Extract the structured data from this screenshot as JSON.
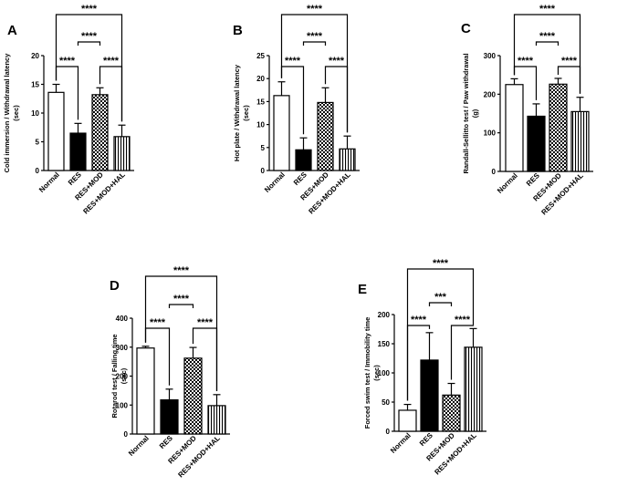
{
  "chart_data": [
    {
      "type": "bar",
      "panel": "A",
      "categories": [
        "Normal",
        "RES",
        "RES+MOD",
        "RES+MOD+HAL"
      ],
      "values": [
        13.6,
        6.5,
        13.2,
        5.9
      ],
      "errors": [
        1.4,
        1.7,
        1.2,
        2.0
      ],
      "ylabel": [
        "Cold immersion / Withdrawal latency",
        "(sec)"
      ],
      "ylim": [
        0,
        20
      ],
      "yticks": [
        0,
        5,
        10,
        15,
        20
      ],
      "patterns": [
        "white",
        "black",
        "checker",
        "vstripe"
      ],
      "significance": [
        {
          "from": 0,
          "to": 1,
          "level": 1,
          "label": "****"
        },
        {
          "from": 1,
          "to": 2,
          "level": 2,
          "label": "****"
        },
        {
          "from": 2,
          "to": 3,
          "level": 1,
          "label": "****"
        },
        {
          "from": 0,
          "to": 3,
          "level": 3,
          "label": "****"
        }
      ]
    },
    {
      "type": "bar",
      "panel": "B",
      "categories": [
        "Normal",
        "RES",
        "RES+MOD",
        "RES+MOD+HAL"
      ],
      "values": [
        16.3,
        4.5,
        14.8,
        4.7
      ],
      "errors": [
        3.0,
        2.6,
        3.2,
        2.8
      ],
      "ylabel": [
        "Hot plate / Withdrawal latency",
        "(sec)"
      ],
      "ylim": [
        0,
        25
      ],
      "yticks": [
        0,
        5,
        10,
        15,
        20,
        25
      ],
      "patterns": [
        "white",
        "black",
        "checker",
        "vstripe"
      ],
      "significance": [
        {
          "from": 0,
          "to": 1,
          "level": 1,
          "label": "****"
        },
        {
          "from": 1,
          "to": 2,
          "level": 2,
          "label": "****"
        },
        {
          "from": 2,
          "to": 3,
          "level": 1,
          "label": "****"
        },
        {
          "from": 0,
          "to": 3,
          "level": 3,
          "label": "****"
        }
      ]
    },
    {
      "type": "bar",
      "panel": "C",
      "categories": [
        "Normal",
        "RES",
        "RES+MOD",
        "RES+MOD+HAL"
      ],
      "values": [
        225,
        143,
        226,
        155
      ],
      "errors": [
        15,
        32,
        15,
        37
      ],
      "ylabel": [
        "Randall-Sellitto test / Paw withdrawal",
        "(g)"
      ],
      "ylim": [
        0,
        300
      ],
      "yticks": [
        0,
        100,
        200,
        300
      ],
      "patterns": [
        "white",
        "black",
        "checker",
        "vstripe"
      ],
      "significance": [
        {
          "from": 0,
          "to": 1,
          "level": 1,
          "label": "****"
        },
        {
          "from": 1,
          "to": 2,
          "level": 2,
          "label": "****"
        },
        {
          "from": 2,
          "to": 3,
          "level": 1,
          "label": "****"
        },
        {
          "from": 0,
          "to": 3,
          "level": 3,
          "label": "****"
        }
      ]
    },
    {
      "type": "bar",
      "panel": "D",
      "categories": [
        "Normal",
        "RES",
        "RES+MOD",
        "RES+MOD+HAL"
      ],
      "values": [
        297,
        118,
        262,
        98
      ],
      "errors": [
        6,
        37,
        37,
        38
      ],
      "ylabel": [
        "Rotarod test / Falling time",
        "(sec)"
      ],
      "ylim": [
        0,
        400
      ],
      "yticks": [
        0,
        100,
        200,
        300,
        400
      ],
      "patterns": [
        "white",
        "black",
        "checker",
        "vstripe"
      ],
      "significance": [
        {
          "from": 0,
          "to": 1,
          "level": 1,
          "label": "****"
        },
        {
          "from": 1,
          "to": 2,
          "level": 2,
          "label": "****"
        },
        {
          "from": 2,
          "to": 3,
          "level": 1,
          "label": "****"
        },
        {
          "from": 0,
          "to": 3,
          "level": 3,
          "label": "****"
        }
      ]
    },
    {
      "type": "bar",
      "panel": "E",
      "categories": [
        "Normal",
        "RES",
        "RES+MOD",
        "RES+MOD+HAL"
      ],
      "values": [
        36,
        122,
        62,
        144
      ],
      "errors": [
        10,
        47,
        20,
        32
      ],
      "ylabel": [
        "Forced swim test / Immobility time",
        "(sec)"
      ],
      "ylim": [
        0,
        200
      ],
      "yticks": [
        0,
        50,
        100,
        150,
        200
      ],
      "patterns": [
        "white",
        "black",
        "checker",
        "vstripe"
      ],
      "significance": [
        {
          "from": 0,
          "to": 1,
          "level": 1,
          "label": "****"
        },
        {
          "from": 1,
          "to": 2,
          "level": 2,
          "label": "***"
        },
        {
          "from": 2,
          "to": 3,
          "level": 1,
          "label": "****"
        },
        {
          "from": 0,
          "to": 3,
          "level": 3,
          "label": "****"
        }
      ]
    }
  ]
}
